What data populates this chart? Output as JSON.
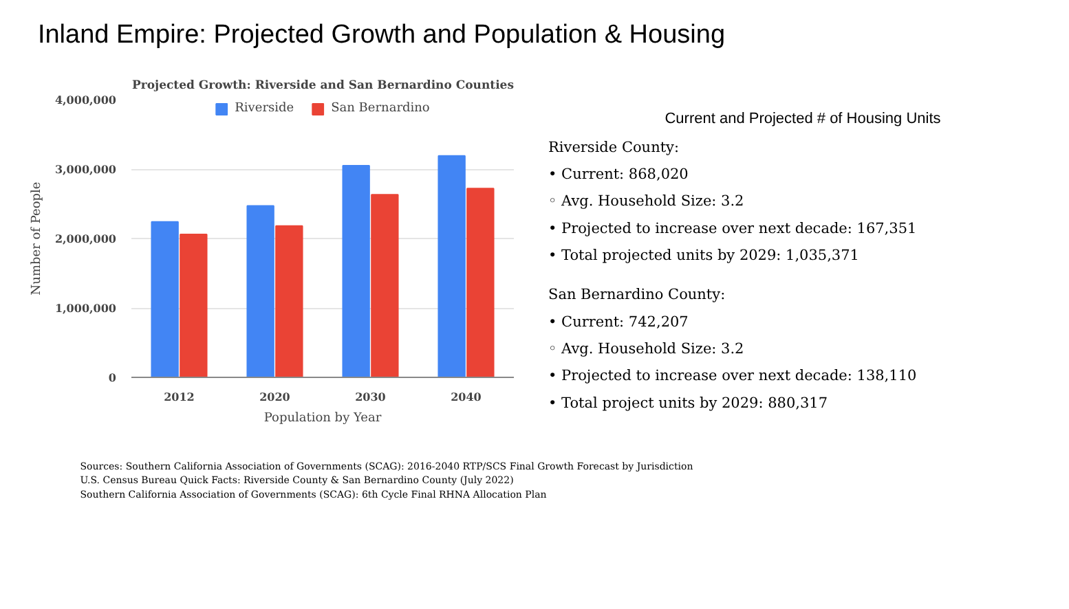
{
  "chart_data": [
    {
      "type": "bar",
      "title": "Projected Growth: Riverside and San Bernardino Counties",
      "xlabel": "Population by Year",
      "ylabel": "Number of People",
      "categories": [
        "2012",
        "2020",
        "2030",
        "2040"
      ],
      "series": [
        {
          "name": "Riverside",
          "color": "#4285f4",
          "values": [
            2240000,
            2470000,
            3050000,
            3190000
          ]
        },
        {
          "name": "San Bernardino",
          "color": "#ea4335",
          "values": [
            2060000,
            2180000,
            2630000,
            2720000
          ]
        }
      ],
      "ylim": [
        0,
        4000000
      ],
      "yticks": [
        0,
        {
          "value": 1000000,
          "label": "1,000,000"
        },
        {
          "value": 2000000,
          "label": "2,000,000"
        },
        {
          "value": 3000000,
          "label": "3,000,000"
        },
        {
          "value": 4000000,
          "label": "4,000,000"
        }
      ],
      "grid": "y",
      "legend": "top"
    },
    {
      "type": "other",
      "title": "Inland Empire: Projected Growth and Population & Housing",
      "subtitle": "Current and Projected # of Housing Units",
      "annotations": [
        "Riverside County:",
        "•  Current: 868,020",
        "◦  Avg. Household Size: 3.2",
        "•  Projected to increase over next decade: 167,351",
        "•  Total projected units by 2029: 1,035,371",
        "San Bernardino County:",
        "•  Current: 742,207",
        "◦  Avg. Household Size: 3.2",
        "•  Projected to increase over next decade: 138,110",
        "•  Total project units by 2029: 880,317",
        "Sources: Southern California Association of Governments (SCAG): 2016-2040 RTP/SCS Final Growth Forecast by Jurisdiction",
        "U.S. Census Bureau Quick Facts: Riverside County & San Bernardino County (July 2022)",
        "Southern California Association of Governments (SCAG): 6th Cycle Final RHNA Allocation Plan"
      ]
    }
  ]
}
